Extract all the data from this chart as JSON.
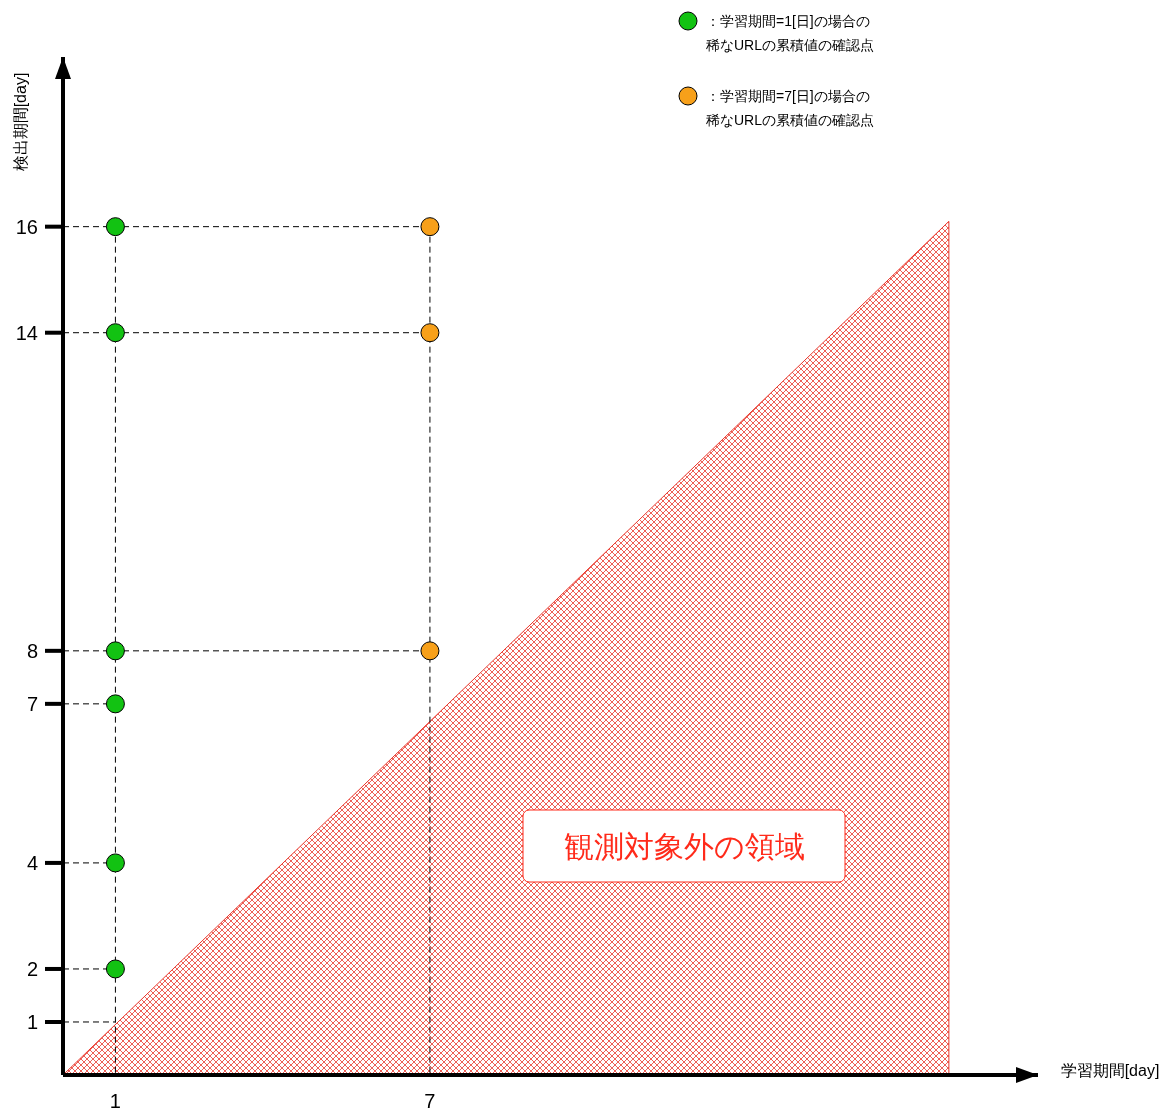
{
  "chart_data": {
    "type": "scatter",
    "xlabel": "学習期間[day]",
    "ylabel": "検出期間[day]",
    "xlim": [
      0,
      18.6
    ],
    "ylim": [
      0,
      19.2
    ],
    "xticks": [
      1,
      7
    ],
    "yticks": [
      1,
      2,
      4,
      7,
      8,
      14,
      16
    ],
    "legend": "top right",
    "marker": "circle",
    "series": [
      {
        "type": "area",
        "color": "#e8372c",
        "marker": "none",
        "x": [
          0,
          16.9
        ],
        "values": [
          0,
          16.1
        ]
      },
      {
        "type": "line",
        "color": "#000000",
        "marker": "none",
        "line_style": "dashed",
        "x": [
          0,
          7
        ],
        "values": [
          16,
          16
        ]
      },
      {
        "type": "line",
        "color": "#000000",
        "marker": "none",
        "line_style": "dashed",
        "x": [
          0,
          7
        ],
        "values": [
          14,
          14
        ]
      },
      {
        "type": "line",
        "color": "#000000",
        "marker": "none",
        "line_style": "dashed",
        "x": [
          0,
          7
        ],
        "values": [
          8,
          8
        ]
      },
      {
        "type": "line",
        "color": "#000000",
        "marker": "none",
        "line_style": "dashed",
        "x": [
          0,
          1
        ],
        "values": [
          7,
          7
        ]
      },
      {
        "type": "line",
        "color": "#000000",
        "marker": "none",
        "line_style": "dashed",
        "x": [
          0,
          1
        ],
        "values": [
          4,
          4
        ]
      },
      {
        "type": "line",
        "color": "#000000",
        "marker": "none",
        "line_style": "dashed",
        "x": [
          0,
          1
        ],
        "values": [
          2,
          2
        ]
      },
      {
        "type": "line",
        "color": "#000000",
        "marker": "none",
        "line_style": "dashed",
        "x": [
          0,
          1
        ],
        "values": [
          1,
          1
        ]
      },
      {
        "type": "line",
        "color": "#000000",
        "marker": "none",
        "line_style": "dashed",
        "x": [
          1,
          1
        ],
        "values": [
          16,
          0
        ]
      },
      {
        "type": "line",
        "color": "#000000",
        "marker": "none",
        "line_style": "dashed",
        "x": [
          7,
          7
        ],
        "values": [
          16,
          0
        ]
      },
      {
        "name": "：学習期間=1[日]の場合の稀なURLの累積値の確認点",
        "color": "#12c212",
        "x": [
          1,
          1,
          1,
          1,
          1,
          1
        ],
        "values": [
          2,
          4,
          7,
          8,
          14,
          16
        ]
      },
      {
        "name": "：学習期間=7[日]の場合の稀なURLの累積値の確認点",
        "color": "#f7a01a",
        "x": [
          7,
          7,
          7
        ],
        "values": [
          8,
          14,
          16
        ]
      }
    ],
    "annotations": [
      "観測対象外の領域"
    ]
  }
}
